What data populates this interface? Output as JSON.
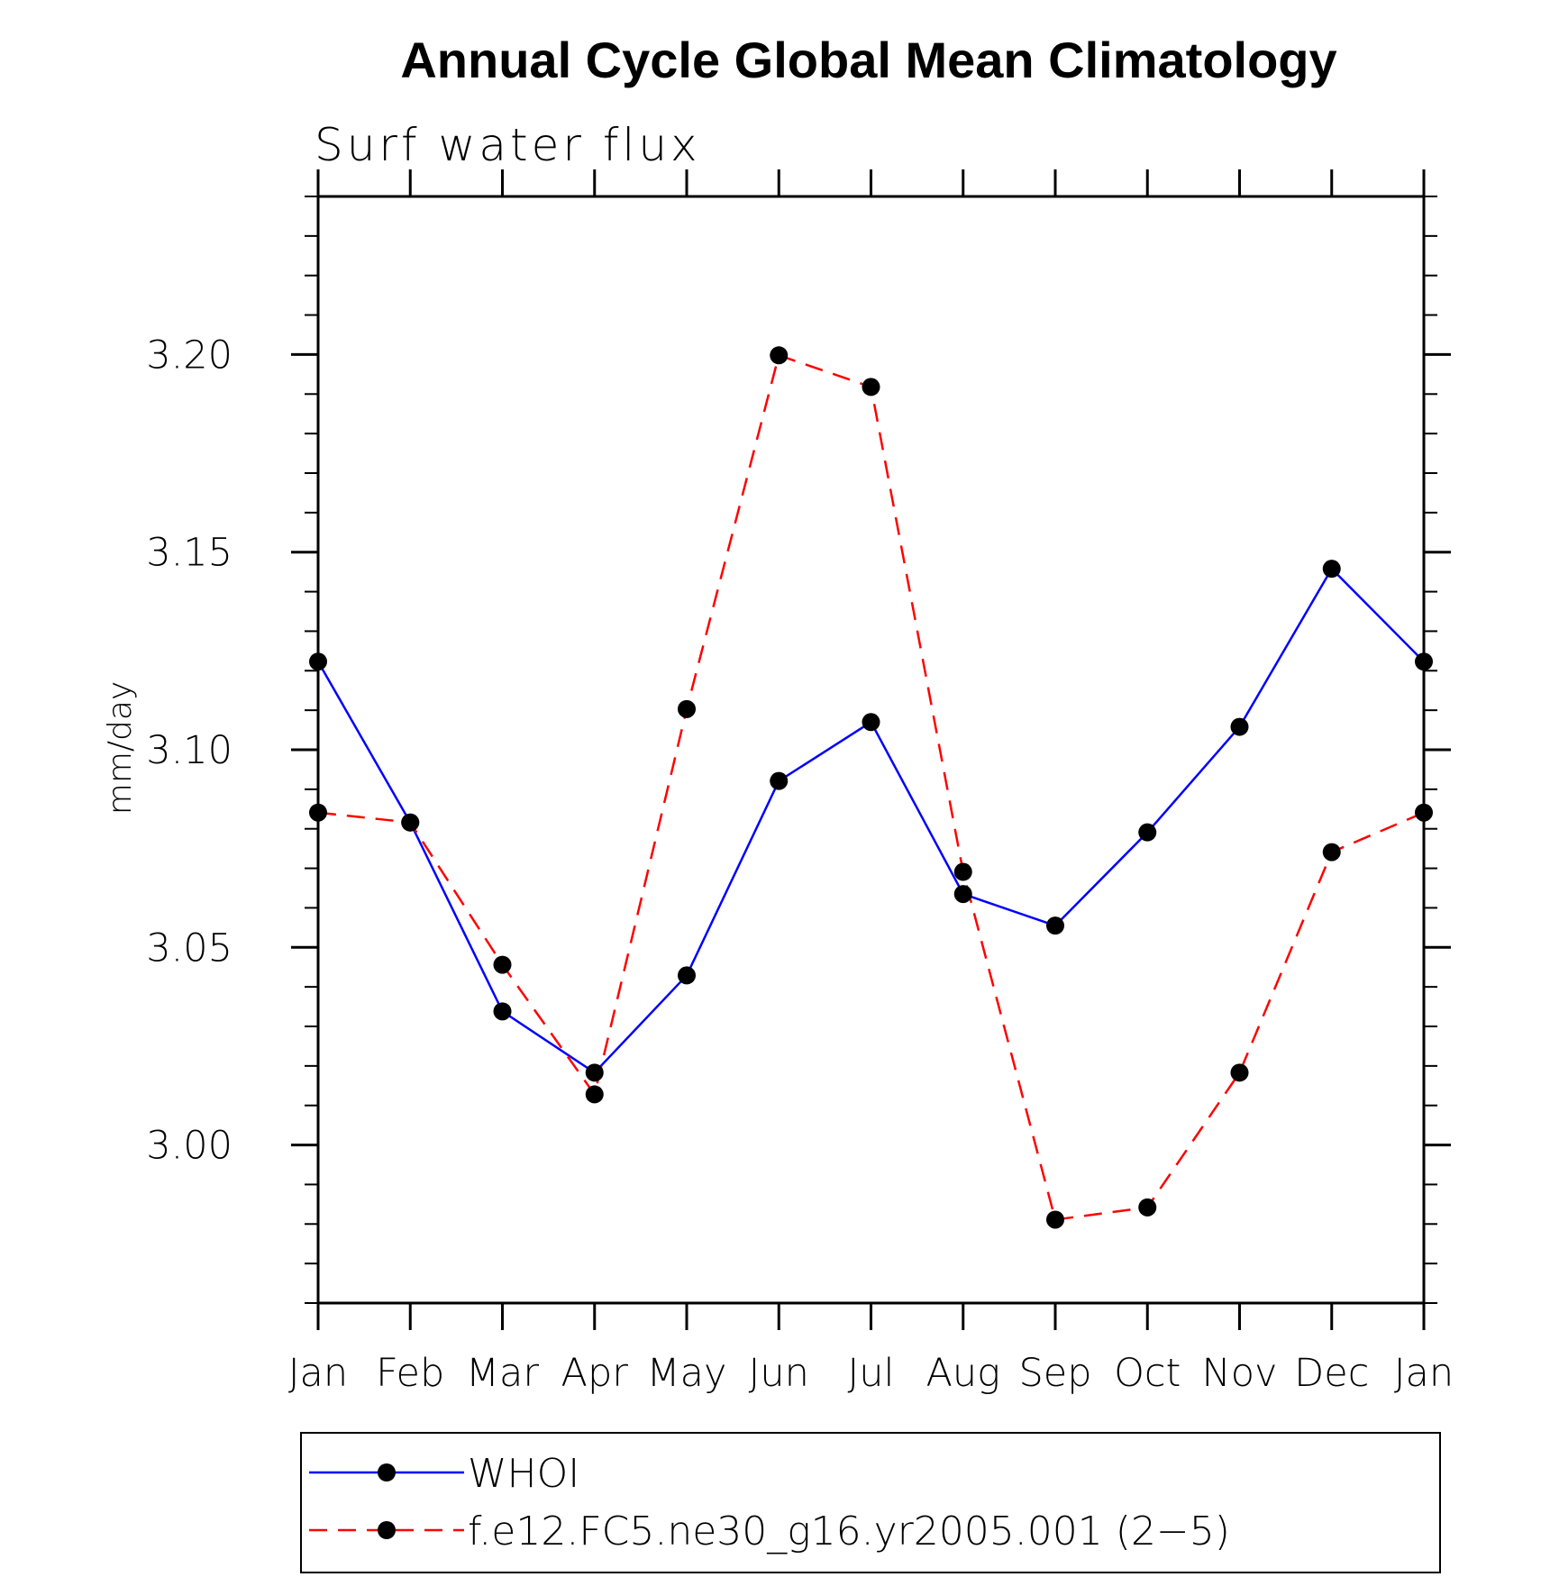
{
  "chart_data": {
    "type": "line",
    "title": "Annual Cycle Global Mean Climatology",
    "subtitle": "Surf water flux",
    "xlabel": "",
    "ylabel": "mm/day",
    "categories": [
      "Jan",
      "Feb",
      "Mar",
      "Apr",
      "May",
      "Jun",
      "Jul",
      "Aug",
      "Sep",
      "Oct",
      "Nov",
      "Dec",
      "Jan"
    ],
    "ylim": [
      2.96,
      3.24
    ],
    "yticks": [
      3.0,
      3.05,
      3.1,
      3.15,
      3.2
    ],
    "ytick_labels": [
      "3.00",
      "3.05",
      "3.10",
      "3.15",
      "3.20"
    ],
    "y_minor_step": 0.01,
    "grid": false,
    "legend_position": "bottom",
    "series": [
      {
        "name": "WHOI",
        "color": "#0000ff",
        "linestyle": "solid",
        "marker": "dot",
        "values": [
          3.1223,
          3.0816,
          3.0338,
          3.0183,
          3.0429,
          3.0921,
          3.107,
          3.0635,
          3.0555,
          3.0791,
          3.1058,
          3.1458,
          3.1223
        ]
      },
      {
        "name": "f.e12.FC5.ne30_g16.yr2005.001 (2−5)",
        "color": "#ff0000",
        "linestyle": "dashed",
        "marker": "dot",
        "values": [
          3.0841,
          3.0816,
          3.0456,
          3.0128,
          3.1103,
          3.1998,
          3.1918,
          3.0691,
          2.9811,
          2.9842,
          3.0183,
          3.0741,
          3.0841
        ]
      }
    ],
    "marker_color": "#000000"
  }
}
